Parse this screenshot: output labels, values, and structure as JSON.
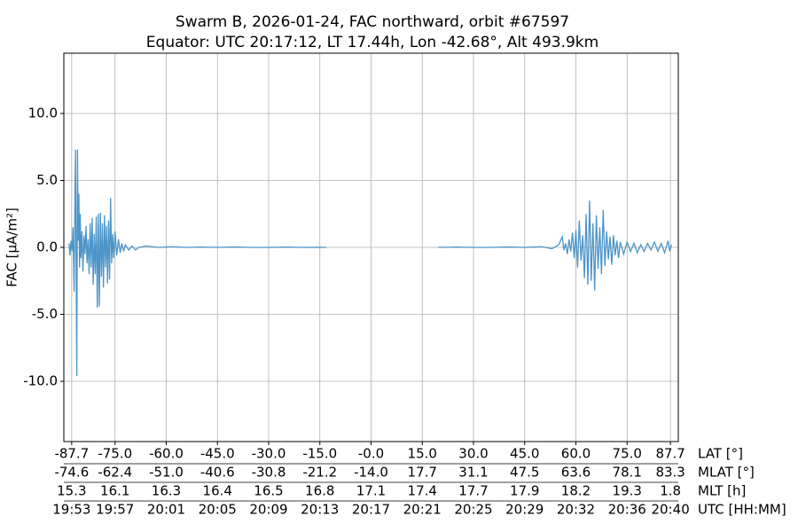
{
  "chart_data": {
    "type": "line",
    "title": "Swarm B, 2026-01-24, FAC northward, orbit #67597",
    "subtitle": "Equator: UTC 20:17:12, LT 17.44h, Lon -42.68°, Alt 493.9km",
    "ylabel": "FAC [μA/m²]",
    "xlabel": "LAT [°]",
    "grid": true,
    "xlim": [
      -90,
      90
    ],
    "ylim": [
      -14.5,
      14.5
    ],
    "xticks": [
      -87.7,
      {
        "value": -75,
        "label": "-75.0"
      },
      {
        "value": -60,
        "label": "-60.0"
      },
      {
        "value": -45,
        "label": "-45.0"
      },
      {
        "value": -30,
        "label": "-30.0"
      },
      {
        "value": -15,
        "label": "-15.0"
      },
      {
        "value": 0,
        "label": "-0.0"
      },
      {
        "value": 15,
        "label": "15.0"
      },
      {
        "value": 30,
        "label": "30.0"
      },
      {
        "value": 45,
        "label": "45.0"
      },
      {
        "value": 60,
        "label": "60.0"
      },
      {
        "value": 75,
        "label": "75.0"
      },
      87.7
    ],
    "yticks": [
      {
        "value": 10,
        "label": "10.0"
      },
      {
        "value": 5,
        "label": "5.0"
      },
      {
        "value": 0,
        "label": "0.0"
      },
      {
        "value": -5,
        "label": "-5.0"
      },
      {
        "value": -10,
        "label": "-10.0"
      }
    ],
    "secondary_x_axes": [
      {
        "label": "MLAT [°]",
        "ticks": [
          -74.6,
          -62.4,
          {
            "value": -51,
            "label": "-51.0"
          },
          -40.6,
          -30.8,
          -21.2,
          {
            "value": -14,
            "label": "-14.0"
          },
          17.7,
          31.1,
          47.5,
          63.6,
          78.1,
          83.3
        ]
      },
      {
        "label": "MLT [h]",
        "ticks": [
          15.3,
          16.1,
          16.3,
          16.4,
          16.5,
          16.8,
          17.1,
          17.4,
          17.7,
          17.9,
          18.2,
          19.3,
          1.8
        ]
      },
      {
        "label": "UTC [HH:MM]",
        "ticks": [
          "19:53",
          "19:57",
          "20:01",
          "20:05",
          "20:09",
          "20:13",
          "20:17",
          "20:21",
          "20:25",
          "20:29",
          "20:32",
          "20:36",
          "20:40"
        ]
      }
    ],
    "x": [
      -88.5,
      -88.2,
      -87.9,
      -87.6,
      -87.3,
      -87.0,
      -86.8,
      -86.6,
      -86.4,
      -86.2,
      -86.0,
      -85.8,
      -85.6,
      -85.4,
      -85.2,
      -85.0,
      -84.7,
      -84.4,
      -84.1,
      -83.8,
      -83.5,
      -83.2,
      -82.9,
      -82.6,
      -82.3,
      -82.0,
      -81.7,
      -81.4,
      -81.1,
      -80.8,
      -80.5,
      -80.2,
      -79.9,
      -79.6,
      -79.3,
      -79.0,
      -78.7,
      -78.4,
      -78.1,
      -77.8,
      -77.5,
      -77.2,
      -76.9,
      -76.6,
      -76.3,
      -76.0,
      -75.7,
      -75.4,
      -75.0,
      -74.5,
      -74.0,
      -73.5,
      -73.0,
      -72.5,
      -72.0,
      -71.0,
      -70.0,
      -69.0,
      -68.0,
      -66.0,
      -62,
      -58,
      -54,
      -50,
      -45,
      -40,
      -35,
      -30,
      -25,
      -20,
      -16,
      -13.1,
      -1,
      19.6,
      25,
      30,
      35,
      40,
      45,
      50,
      53,
      55,
      56,
      56.5,
      57,
      57.5,
      58,
      58.5,
      59,
      59.5,
      60,
      60.5,
      61,
      61.5,
      62,
      62.5,
      63,
      63.5,
      64,
      64.5,
      65,
      65.5,
      66,
      66.5,
      67,
      67.5,
      68,
      68.5,
      69,
      69.5,
      70,
      70.5,
      71,
      71.5,
      72,
      72.5,
      73,
      74,
      75,
      76,
      77,
      78,
      79,
      80,
      81,
      82,
      83,
      84,
      85,
      86,
      87,
      87.5,
      88
    ],
    "series": [
      {
        "name": "FAC",
        "color": "#4c94c8",
        "values": [
          0.3,
          -0.6,
          0.5,
          -0.3,
          1.5,
          -3.3,
          2.0,
          7.3,
          -1.0,
          -9.6,
          7.3,
          0.5,
          4.0,
          -1.5,
          2.5,
          -0.8,
          1.2,
          -1.8,
          0.9,
          -0.5,
          1.6,
          -1.2,
          0.6,
          -2.0,
          1.8,
          -1.5,
          2.2,
          -2.8,
          1.0,
          -2.0,
          2.3,
          -4.5,
          2.5,
          -4.4,
          2.6,
          -2.2,
          1.8,
          -3.0,
          2.4,
          -1.5,
          1.6,
          -2.7,
          2.0,
          -2.4,
          3.7,
          -1.2,
          1.0,
          -0.8,
          1.2,
          -0.6,
          0.6,
          -0.4,
          0.3,
          -0.3,
          0.2,
          -0.2,
          0.1,
          -0.2,
          0.0,
          0.1,
          0.0,
          0.05,
          0.0,
          0.02,
          0.0,
          0.03,
          0.0,
          0.0,
          0.02,
          0.0,
          0.01,
          0.0,
          null,
          0.0,
          0.02,
          0.0,
          0.0,
          0.03,
          0.0,
          0.05,
          -0.1,
          0.2,
          0.8,
          -0.2,
          0.3,
          -0.5,
          0.6,
          -0.3,
          1.1,
          -0.8,
          1.3,
          -1.5,
          2.0,
          -1.0,
          0.9,
          -2.3,
          2.5,
          -2.8,
          3.5,
          -2.5,
          1.8,
          -3.2,
          2.4,
          -1.6,
          1.5,
          -2.0,
          2.8,
          -1.4,
          1.2,
          -0.9,
          0.8,
          -1.3,
          0.9,
          -0.6,
          0.5,
          -0.8,
          0.4,
          -0.5,
          0.4,
          -0.3,
          0.3,
          -0.4,
          0.2,
          -0.3,
          0.3,
          -0.2,
          0.4,
          -0.3,
          0.3,
          -0.4,
          0.5,
          -0.3,
          0.2
        ]
      }
    ]
  }
}
